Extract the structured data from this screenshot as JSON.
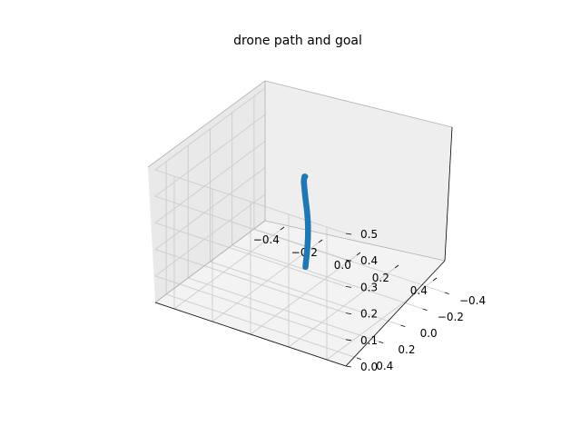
{
  "chart_data": {
    "type": "line",
    "title": "drone path and goal",
    "xlabel": "",
    "ylabel": "",
    "zlabel": "",
    "projection": "3d",
    "xlim": [
      -0.5,
      0.5
    ],
    "ylim": [
      -0.5,
      0.5
    ],
    "zlim": [
      0.0,
      0.5
    ],
    "xticks": [
      -0.4,
      -0.2,
      0.0,
      0.2,
      0.4
    ],
    "xtick_labels": [
      "−0.4",
      "−0.2",
      "0.0",
      "0.2",
      "0.4"
    ],
    "yticks": [
      -0.4,
      -0.2,
      0.0,
      0.2,
      0.4
    ],
    "ytick_labels": [
      "−0.4",
      "−0.2",
      "0.0",
      "0.2",
      "0.4"
    ],
    "zticks": [
      0.0,
      0.1,
      0.2,
      0.3,
      0.4,
      0.5
    ],
    "ztick_labels": [
      "0.0",
      "0.1",
      "0.2",
      "0.3",
      "0.4",
      "0.5"
    ],
    "grid": true,
    "series": [
      {
        "name": "",
        "color": "#1f77b4",
        "x": [
          0.0,
          0.0,
          0.0,
          0.0,
          0.0,
          0.0,
          0.0,
          0.0,
          0.0,
          0.0,
          0.0,
          0.0,
          0.0,
          0.0,
          0.0,
          0.0,
          0.0,
          0.0,
          0.0,
          0.0,
          0.0
        ],
        "y": [
          0.0,
          0.0,
          0.0,
          0.0,
          0.0,
          0.0,
          0.0,
          0.0,
          0.0,
          0.0,
          0.0,
          0.0,
          0.0,
          0.0,
          0.0,
          0.0,
          0.0,
          0.0,
          0.0,
          0.0,
          0.0
        ],
        "z": [
          0.1,
          0.115,
          0.13,
          0.15,
          0.17,
          0.19,
          0.21,
          0.23,
          0.25,
          0.27,
          0.29,
          0.31,
          0.33,
          0.35,
          0.37,
          0.39,
          0.41,
          0.42,
          0.43,
          0.44,
          0.44
        ]
      }
    ]
  }
}
